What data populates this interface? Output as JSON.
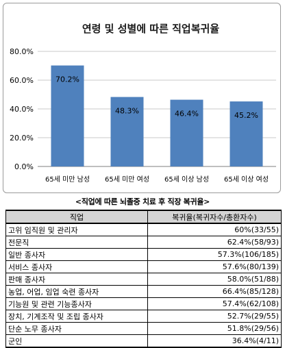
{
  "chart_data": {
    "type": "bar",
    "title": "연령 및 성별에 따른 직업복귀율",
    "categories": [
      "65세 미만 남성",
      "65세 미만 여성",
      "65세 이상 남성",
      "65세 이상 여성"
    ],
    "values": [
      70.2,
      48.3,
      46.4,
      45.2
    ],
    "data_labels": [
      "70.2%",
      "48.3%",
      "46.4%",
      "45.2%"
    ],
    "yticks": [
      "0.0%",
      "20.0%",
      "40.0%",
      "60.0%",
      "80.0%"
    ],
    "ylim": [
      0,
      80
    ],
    "bar_color": "#4f81bd",
    "grid": true,
    "legend": "none"
  },
  "table_caption": "<직업에 따른 뇌졸중 치료 후 직장 복귀율>",
  "table": {
    "headers": [
      "직업",
      "복귀율(복귀자수/총환자수)"
    ],
    "rows": [
      [
        "고위 임직원 및 관리자",
        "60%(33/55)"
      ],
      [
        "전문직",
        "62.4%(58/93)"
      ],
      [
        "일반 종사자",
        "57.3%(106/185)"
      ],
      [
        "서비스 종사자",
        "57.6%(80/139)"
      ],
      [
        "판매 종사자",
        "58.0%(51/88)"
      ],
      [
        "농업, 어업, 임업  숙련 종사자",
        "66.4%(85/128)"
      ],
      [
        "기능원 및 관련 기능종사자",
        "57.4%(62/108)"
      ],
      [
        "장치, 기계조작 및 조립 종사자",
        "52.7%(29/55)"
      ],
      [
        "단순 노무 종사자",
        "51.8%(29/56)"
      ],
      [
        "군인",
        "36.4%(4/11)"
      ]
    ]
  }
}
